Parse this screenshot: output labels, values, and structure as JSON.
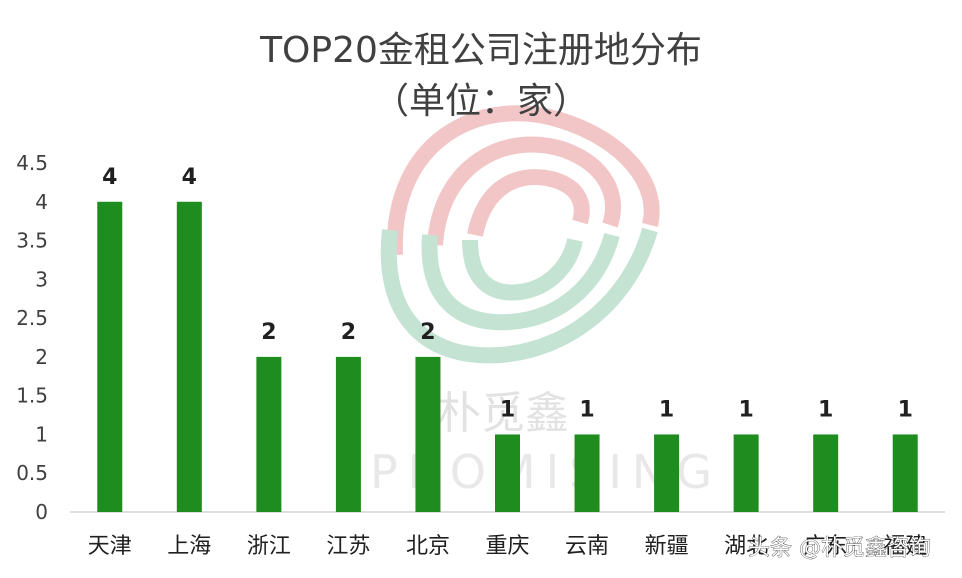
{
  "chart_data": {
    "type": "bar",
    "title": "TOP20金租公司注册地分布",
    "subtitle": "（单位：家）",
    "categories": [
      "天津",
      "上海",
      "浙江",
      "江苏",
      "北京",
      "重庆",
      "云南",
      "新疆",
      "湖北",
      "广东",
      "福建"
    ],
    "values": [
      4,
      4,
      2,
      2,
      2,
      1,
      1,
      1,
      1,
      1,
      1
    ],
    "ylim": [
      0,
      4.5
    ],
    "yticks": [
      "0",
      "0.5",
      "1",
      "1.5",
      "2",
      "2.5",
      "3",
      "3.5",
      "4",
      "4.5"
    ],
    "grid": false,
    "bar_color": "#1e8c1e"
  },
  "watermark": {
    "text": "朴觅鑫",
    "subtext": "PROMISING",
    "colors": {
      "top": "#f0b8b8",
      "bottom": "#b8dcc8"
    }
  },
  "credit": "头条 @朴觅鑫咨询"
}
